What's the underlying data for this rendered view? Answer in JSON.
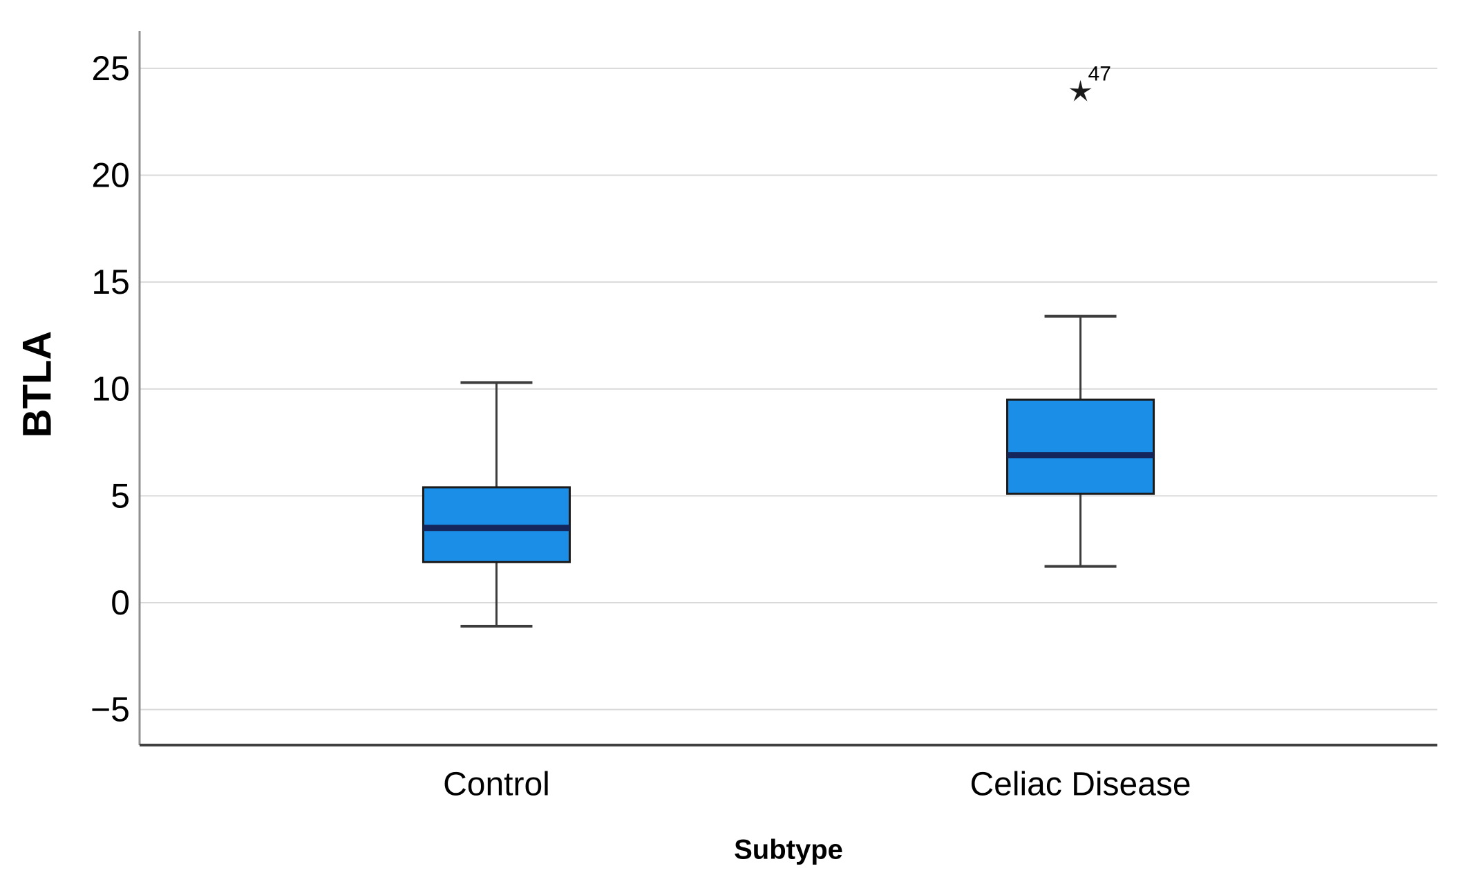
{
  "chart_data": {
    "type": "boxplot",
    "title": "",
    "xlabel": "Subtype",
    "ylabel": "BTLA",
    "categories": [
      "Control",
      "Celiac Disease"
    ],
    "yticks": [
      25,
      20,
      15,
      10,
      5,
      0,
      -5
    ],
    "ylim": [
      -6.66,
      26.74
    ],
    "grid": true,
    "legend": "none",
    "boxes": [
      {
        "category": "Control",
        "whisker_low": -1.1,
        "q1": 1.9,
        "median": 3.5,
        "q3": 5.4,
        "whisker_high": 10.3,
        "outliers": []
      },
      {
        "category": "Celiac Disease",
        "whisker_low": 1.7,
        "q1": 5.1,
        "median": 6.9,
        "q3": 9.5,
        "whisker_high": 13.4,
        "outliers": [
          {
            "value": 23.9,
            "label": "47",
            "marker": "star"
          }
        ]
      }
    ],
    "colors": {
      "box_fill": "#1B8FE8",
      "median_line": "#14265C",
      "box_border": "#1A1A1A",
      "whisker": "#3C3C3C",
      "gridline": "#D9D9D9",
      "y_axis_line": "#8F8F8F",
      "x_axis_line": "#404040",
      "text": "#000000",
      "background": "#FFFFFF"
    }
  }
}
